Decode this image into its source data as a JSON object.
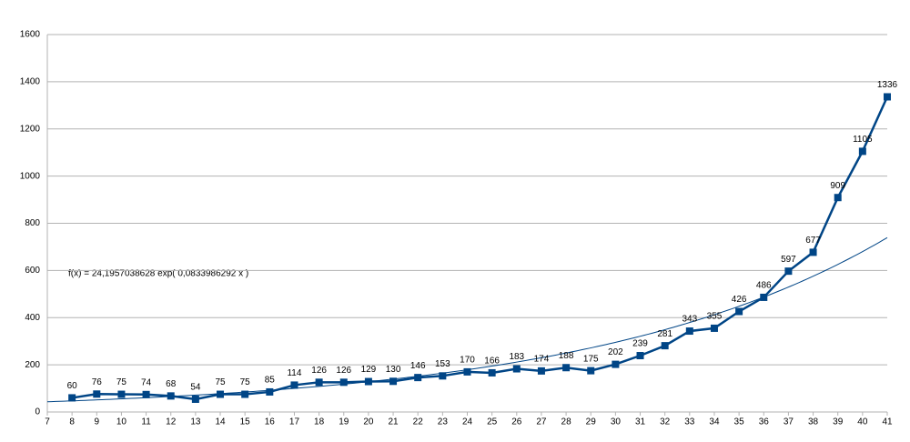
{
  "chart_data": {
    "type": "line",
    "annotation": "f(x) = 24,1957038628 exp( 0,0833986292 x )",
    "x": [
      8,
      9,
      10,
      11,
      12,
      13,
      14,
      15,
      16,
      17,
      18,
      19,
      20,
      21,
      22,
      23,
      24,
      25,
      26,
      27,
      28,
      29,
      30,
      31,
      32,
      33,
      34,
      35,
      36,
      37,
      38,
      39,
      40,
      41
    ],
    "values": [
      60,
      76,
      75,
      74,
      68,
      54,
      75,
      75,
      85,
      114,
      126,
      126,
      129,
      130,
      146,
      153,
      170,
      166,
      183,
      174,
      188,
      175,
      202,
      239,
      281,
      343,
      355,
      426,
      486,
      597,
      677,
      909,
      1105,
      1336
    ],
    "color": "#004586",
    "trend_color": "#004586",
    "xlim": [
      7,
      41
    ],
    "xticks": [
      7,
      8,
      9,
      10,
      11,
      12,
      13,
      14,
      15,
      16,
      17,
      18,
      19,
      20,
      21,
      22,
      23,
      24,
      25,
      26,
      27,
      28,
      29,
      30,
      31,
      32,
      33,
      34,
      35,
      36,
      37,
      38,
      39,
      40,
      41
    ],
    "ylim": [
      0,
      1600
    ],
    "yticks": [
      0,
      200,
      400,
      600,
      800,
      1000,
      1200,
      1400,
      1600
    ],
    "grid": true
  }
}
